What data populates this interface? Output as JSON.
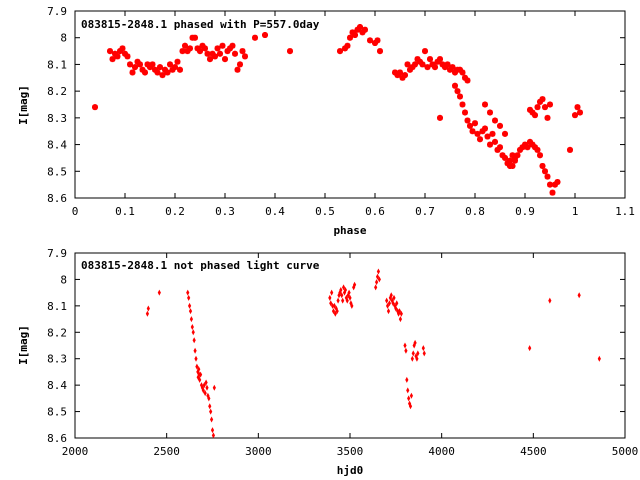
{
  "chart_data": [
    {
      "type": "scatter",
      "title": "083815-2848.1 phased with P=557.0day",
      "xlabel": "phase",
      "ylabel": "I[mag]",
      "xlim": [
        0,
        1.1
      ],
      "ylim": [
        8.6,
        7.9
      ],
      "y_inverted": true,
      "xticks": [
        "0",
        "0.1",
        "0.2",
        "0.3",
        "0.4",
        "0.5",
        "0.6",
        "0.7",
        "0.8",
        "0.9",
        "1",
        "1.1"
      ],
      "yticks": [
        "7.9",
        "8",
        "8.1",
        "8.2",
        "8.3",
        "8.4",
        "8.5",
        "8.6"
      ],
      "grid": false,
      "series_color": "#ff0000",
      "points": [
        [
          0.04,
          8.26
        ],
        [
          0.07,
          8.05
        ],
        [
          0.075,
          8.08
        ],
        [
          0.08,
          8.06
        ],
        [
          0.085,
          8.07
        ],
        [
          0.09,
          8.05
        ],
        [
          0.095,
          8.04
        ],
        [
          0.1,
          8.06
        ],
        [
          0.105,
          8.07
        ],
        [
          0.11,
          8.1
        ],
        [
          0.115,
          8.13
        ],
        [
          0.12,
          8.11
        ],
        [
          0.125,
          8.09
        ],
        [
          0.13,
          8.1
        ],
        [
          0.135,
          8.12
        ],
        [
          0.14,
          8.13
        ],
        [
          0.145,
          8.1
        ],
        [
          0.15,
          8.11
        ],
        [
          0.155,
          8.1
        ],
        [
          0.16,
          8.12
        ],
        [
          0.165,
          8.13
        ],
        [
          0.17,
          8.11
        ],
        [
          0.175,
          8.14
        ],
        [
          0.18,
          8.12
        ],
        [
          0.185,
          8.13
        ],
        [
          0.19,
          8.1
        ],
        [
          0.195,
          8.12
        ],
        [
          0.2,
          8.11
        ],
        [
          0.205,
          8.09
        ],
        [
          0.21,
          8.12
        ],
        [
          0.215,
          8.05
        ],
        [
          0.22,
          8.03
        ],
        [
          0.225,
          8.05
        ],
        [
          0.23,
          8.04
        ],
        [
          0.235,
          8.0
        ],
        [
          0.24,
          8.0
        ],
        [
          0.245,
          8.04
        ],
        [
          0.25,
          8.05
        ],
        [
          0.255,
          8.03
        ],
        [
          0.26,
          8.04
        ],
        [
          0.265,
          8.06
        ],
        [
          0.27,
          8.08
        ],
        [
          0.275,
          8.06
        ],
        [
          0.28,
          8.07
        ],
        [
          0.285,
          8.04
        ],
        [
          0.29,
          8.06
        ],
        [
          0.295,
          8.03
        ],
        [
          0.3,
          8.08
        ],
        [
          0.305,
          8.05
        ],
        [
          0.31,
          8.04
        ],
        [
          0.315,
          8.03
        ],
        [
          0.32,
          8.06
        ],
        [
          0.325,
          8.12
        ],
        [
          0.33,
          8.1
        ],
        [
          0.335,
          8.05
        ],
        [
          0.34,
          8.07
        ],
        [
          0.36,
          8.0
        ],
        [
          0.38,
          7.99
        ],
        [
          0.43,
          8.05
        ],
        [
          0.53,
          8.05
        ],
        [
          0.54,
          8.04
        ],
        [
          0.545,
          8.03
        ],
        [
          0.55,
          8.0
        ],
        [
          0.555,
          7.98
        ],
        [
          0.56,
          7.99
        ],
        [
          0.565,
          7.97
        ],
        [
          0.57,
          7.96
        ],
        [
          0.575,
          7.98
        ],
        [
          0.58,
          7.97
        ],
        [
          0.59,
          8.01
        ],
        [
          0.6,
          8.02
        ],
        [
          0.605,
          8.01
        ],
        [
          0.61,
          8.05
        ],
        [
          0.64,
          8.13
        ],
        [
          0.645,
          8.14
        ],
        [
          0.65,
          8.13
        ],
        [
          0.655,
          8.15
        ],
        [
          0.66,
          8.14
        ],
        [
          0.665,
          8.1
        ],
        [
          0.67,
          8.12
        ],
        [
          0.675,
          8.11
        ],
        [
          0.68,
          8.1
        ],
        [
          0.685,
          8.08
        ],
        [
          0.69,
          8.09
        ],
        [
          0.695,
          8.1
        ],
        [
          0.7,
          8.05
        ],
        [
          0.705,
          8.11
        ],
        [
          0.71,
          8.08
        ],
        [
          0.715,
          8.1
        ],
        [
          0.72,
          8.11
        ],
        [
          0.725,
          8.09
        ],
        [
          0.73,
          8.08
        ],
        [
          0.735,
          8.1
        ],
        [
          0.74,
          8.11
        ],
        [
          0.745,
          8.1
        ],
        [
          0.75,
          8.12
        ],
        [
          0.755,
          8.11
        ],
        [
          0.76,
          8.13
        ],
        [
          0.765,
          8.12
        ],
        [
          0.77,
          8.12
        ],
        [
          0.775,
          8.13
        ],
        [
          0.78,
          8.15
        ],
        [
          0.785,
          8.16
        ],
        [
          0.73,
          8.3
        ],
        [
          0.76,
          8.18
        ],
        [
          0.765,
          8.2
        ],
        [
          0.77,
          8.22
        ],
        [
          0.775,
          8.25
        ],
        [
          0.78,
          8.28
        ],
        [
          0.785,
          8.31
        ],
        [
          0.79,
          8.33
        ],
        [
          0.795,
          8.35
        ],
        [
          0.8,
          8.32
        ],
        [
          0.805,
          8.36
        ],
        [
          0.81,
          8.38
        ],
        [
          0.815,
          8.35
        ],
        [
          0.82,
          8.34
        ],
        [
          0.825,
          8.37
        ],
        [
          0.83,
          8.4
        ],
        [
          0.835,
          8.36
        ],
        [
          0.84,
          8.39
        ],
        [
          0.845,
          8.42
        ],
        [
          0.85,
          8.41
        ],
        [
          0.855,
          8.44
        ],
        [
          0.86,
          8.45
        ],
        [
          0.865,
          8.47
        ],
        [
          0.87,
          8.46
        ],
        [
          0.875,
          8.48
        ],
        [
          0.88,
          8.45
        ],
        [
          0.885,
          8.44
        ],
        [
          0.89,
          8.42
        ],
        [
          0.895,
          8.41
        ],
        [
          0.9,
          8.4
        ],
        [
          0.82,
          8.25
        ],
        [
          0.83,
          8.28
        ],
        [
          0.84,
          8.31
        ],
        [
          0.85,
          8.33
        ],
        [
          0.86,
          8.36
        ],
        [
          0.87,
          8.48
        ],
        [
          0.875,
          8.44
        ],
        [
          0.88,
          8.46
        ],
        [
          0.905,
          8.41
        ],
        [
          0.91,
          8.39
        ],
        [
          0.915,
          8.4
        ],
        [
          0.92,
          8.41
        ],
        [
          0.925,
          8.42
        ],
        [
          0.93,
          8.44
        ],
        [
          0.935,
          8.48
        ],
        [
          0.94,
          8.5
        ],
        [
          0.945,
          8.52
        ],
        [
          0.95,
          8.55
        ],
        [
          0.955,
          8.58
        ],
        [
          0.96,
          8.55
        ],
        [
          0.965,
          8.54
        ],
        [
          0.91,
          8.27
        ],
        [
          0.915,
          8.28
        ],
        [
          0.92,
          8.29
        ],
        [
          0.925,
          8.26
        ],
        [
          0.93,
          8.24
        ],
        [
          0.935,
          8.23
        ],
        [
          0.94,
          8.26
        ],
        [
          0.945,
          8.3
        ],
        [
          0.95,
          8.25
        ],
        [
          0.99,
          8.42
        ],
        [
          1.0,
          8.29
        ],
        [
          1.005,
          8.26
        ],
        [
          1.01,
          8.28
        ]
      ]
    },
    {
      "type": "scatter",
      "title": "083815-2848.1 not phased light curve",
      "xlabel": "hjd0",
      "ylabel": "I[mag]",
      "xlim": [
        2000,
        5000
      ],
      "ylim": [
        8.6,
        7.9
      ],
      "y_inverted": true,
      "xticks": [
        "2000",
        "2500",
        "3000",
        "3500",
        "4000",
        "4500",
        "5000"
      ],
      "yticks": [
        "7.9",
        "8",
        "8.1",
        "8.2",
        "8.3",
        "8.4",
        "8.5",
        "8.6"
      ],
      "grid": false,
      "series_color": "#ff0000",
      "points": [
        [
          2395,
          8.13
        ],
        [
          2400,
          8.11
        ],
        [
          2460,
          8.05
        ],
        [
          2615,
          8.05
        ],
        [
          2620,
          8.07
        ],
        [
          2625,
          8.1
        ],
        [
          2630,
          8.12
        ],
        [
          2635,
          8.15
        ],
        [
          2640,
          8.18
        ],
        [
          2645,
          8.2
        ],
        [
          2650,
          8.23
        ],
        [
          2655,
          8.27
        ],
        [
          2660,
          8.3
        ],
        [
          2665,
          8.33
        ],
        [
          2670,
          8.35
        ],
        [
          2672,
          8.37
        ],
        [
          2675,
          8.34
        ],
        [
          2678,
          8.36
        ],
        [
          2680,
          8.38
        ],
        [
          2685,
          8.36
        ],
        [
          2690,
          8.4
        ],
        [
          2695,
          8.41
        ],
        [
          2700,
          8.42
        ],
        [
          2705,
          8.4
        ],
        [
          2710,
          8.43
        ],
        [
          2715,
          8.39
        ],
        [
          2720,
          8.41
        ],
        [
          2725,
          8.44
        ],
        [
          2730,
          8.45
        ],
        [
          2735,
          8.48
        ],
        [
          2740,
          8.5
        ],
        [
          2745,
          8.53
        ],
        [
          2750,
          8.57
        ],
        [
          2755,
          8.59
        ],
        [
          2760,
          8.41
        ],
        [
          3390,
          8.07
        ],
        [
          3395,
          8.09
        ],
        [
          3400,
          8.05
        ],
        [
          3405,
          8.1
        ],
        [
          3410,
          8.12
        ],
        [
          3415,
          8.1
        ],
        [
          3420,
          8.13
        ],
        [
          3425,
          8.11
        ],
        [
          3430,
          8.12
        ],
        [
          3435,
          8.08
        ],
        [
          3440,
          8.06
        ],
        [
          3445,
          8.05
        ],
        [
          3450,
          8.04
        ],
        [
          3455,
          8.06
        ],
        [
          3460,
          8.08
        ],
        [
          3465,
          8.03
        ],
        [
          3470,
          8.05
        ],
        [
          3475,
          8.04
        ],
        [
          3480,
          8.07
        ],
        [
          3485,
          8.08
        ],
        [
          3490,
          8.06
        ],
        [
          3495,
          8.05
        ],
        [
          3500,
          8.07
        ],
        [
          3505,
          8.09
        ],
        [
          3510,
          8.1
        ],
        [
          3520,
          8.03
        ],
        [
          3525,
          8.02
        ],
        [
          3640,
          8.03
        ],
        [
          3645,
          8.01
        ],
        [
          3650,
          7.99
        ],
        [
          3655,
          7.97
        ],
        [
          3660,
          8.0
        ],
        [
          3700,
          8.08
        ],
        [
          3705,
          8.1
        ],
        [
          3710,
          8.12
        ],
        [
          3715,
          8.09
        ],
        [
          3720,
          8.07
        ],
        [
          3725,
          8.06
        ],
        [
          3730,
          8.08
        ],
        [
          3735,
          8.09
        ],
        [
          3740,
          8.07
        ],
        [
          3745,
          8.1
        ],
        [
          3750,
          8.11
        ],
        [
          3755,
          8.09
        ],
        [
          3760,
          8.12
        ],
        [
          3765,
          8.13
        ],
        [
          3770,
          8.12
        ],
        [
          3775,
          8.15
        ],
        [
          3780,
          8.13
        ],
        [
          3800,
          8.25
        ],
        [
          3805,
          8.27
        ],
        [
          3810,
          8.38
        ],
        [
          3815,
          8.42
        ],
        [
          3820,
          8.45
        ],
        [
          3825,
          8.47
        ],
        [
          3830,
          8.48
        ],
        [
          3835,
          8.44
        ],
        [
          3840,
          8.3
        ],
        [
          3845,
          8.28
        ],
        [
          3850,
          8.25
        ],
        [
          3855,
          8.24
        ],
        [
          3860,
          8.29
        ],
        [
          3865,
          8.3
        ],
        [
          3870,
          8.28
        ],
        [
          3900,
          8.26
        ],
        [
          3905,
          8.28
        ],
        [
          4480,
          8.26
        ],
        [
          4590,
          8.08
        ],
        [
          4750,
          8.06
        ],
        [
          4860,
          8.3
        ]
      ]
    }
  ]
}
